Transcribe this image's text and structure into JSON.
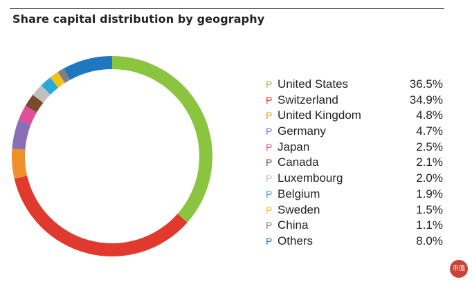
{
  "title": "Share capital distribution by geography",
  "chart_data": {
    "type": "pie",
    "style": "donut",
    "title": "Share capital distribution by geography",
    "legend_position": "right",
    "series": [
      {
        "name": "United States",
        "value": 36.5,
        "value_label": "36.5%",
        "color": "#8bc43f",
        "marker": "P"
      },
      {
        "name": "Switzerland",
        "value": 34.9,
        "value_label": "34.9%",
        "color": "#e03a2f",
        "marker": "P"
      },
      {
        "name": "United Kingdom",
        "value": 4.8,
        "value_label": "4.8%",
        "color": "#f0902a",
        "marker": "P"
      },
      {
        "name": "Germany",
        "value": 4.7,
        "value_label": "4.7%",
        "color": "#8a6fb5",
        "marker": "P"
      },
      {
        "name": "Japan",
        "value": 2.5,
        "value_label": "2.5%",
        "color": "#e0509a",
        "marker": "P"
      },
      {
        "name": "Canada",
        "value": 2.1,
        "value_label": "2.1%",
        "color": "#7a4a2a",
        "marker": "P"
      },
      {
        "name": "Luxembourg",
        "value": 2.0,
        "value_label": "2.0%",
        "color": "#c0c0c0",
        "marker": "P"
      },
      {
        "name": "Belgium",
        "value": 1.9,
        "value_label": "1.9%",
        "color": "#28a9d8",
        "marker": "P"
      },
      {
        "name": "Sweden",
        "value": 1.5,
        "value_label": "1.5%",
        "color": "#f2c21a",
        "marker": "P"
      },
      {
        "name": "China",
        "value": 1.1,
        "value_label": "1.1%",
        "color": "#808080",
        "marker": "P"
      },
      {
        "name": "Others",
        "value": 8.0,
        "value_label": "8.0%",
        "color": "#1f78bf",
        "marker": "P"
      }
    ]
  },
  "watermark": {
    "text": "市值"
  }
}
